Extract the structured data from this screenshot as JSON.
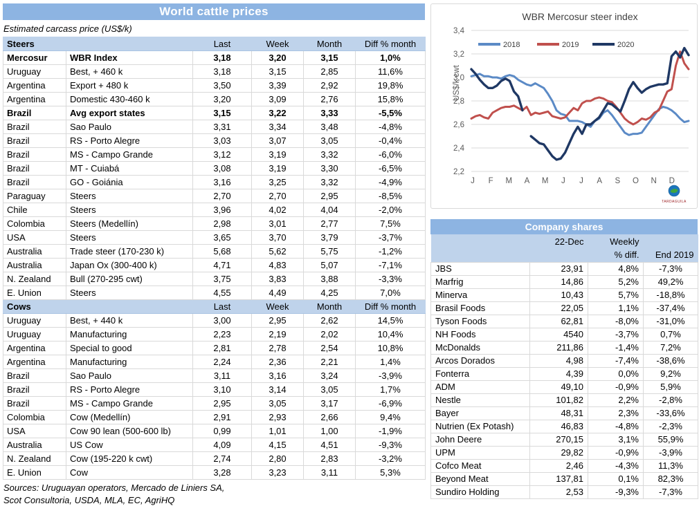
{
  "left_table": {
    "title": "World cattle prices",
    "subtitle": "Estimated carcass price (US$/k)",
    "columns": [
      "Last",
      "Week",
      "Month",
      "Diff % month"
    ],
    "sections": [
      {
        "label": "Steers",
        "rows": [
          [
            "Mercosur",
            "WBR Index",
            "3,18",
            "3,20",
            "3,15",
            "1,0%",
            true
          ],
          [
            "Uruguay",
            "Best, + 460 k",
            "3,18",
            "3,15",
            "2,85",
            "11,6%",
            false
          ],
          [
            "Argentina",
            "Export + 480 k",
            "3,50",
            "3,39",
            "2,92",
            "19,8%",
            false
          ],
          [
            "Argentina",
            "Domestic 430-460 k",
            "3,20",
            "3,09",
            "2,76",
            "15,8%",
            false
          ],
          [
            "Brazil",
            "Avg export states",
            "3,15",
            "3,22",
            "3,33",
            "-5,5%",
            true
          ],
          [
            "Brazil",
            "Sao Paulo",
            "3,31",
            "3,34",
            "3,48",
            "-4,8%",
            false
          ],
          [
            "Brazil",
            "RS - Porto Alegre",
            "3,03",
            "3,07",
            "3,05",
            "-0,4%",
            false
          ],
          [
            "Brazil",
            "MS - Campo Grande",
            "3,12",
            "3,19",
            "3,32",
            "-6,0%",
            false
          ],
          [
            "Brazil",
            "MT - Cuiabá",
            "3,08",
            "3,19",
            "3,30",
            "-6,5%",
            false
          ],
          [
            "Brazil",
            "GO - Goiánia",
            "3,16",
            "3,25",
            "3,32",
            "-4,9%",
            false
          ],
          [
            "Paraguay",
            "Steers",
            "2,70",
            "2,70",
            "2,95",
            "-8,5%",
            false
          ],
          [
            "Chile",
            "Steers",
            "3,96",
            "4,02",
            "4,04",
            "-2,0%",
            false
          ],
          [
            "Colombia",
            "Steers (Medellín)",
            "2,98",
            "3,01",
            "2,77",
            "7,5%",
            false
          ],
          [
            "USA",
            "Steers",
            "3,65",
            "3,70",
            "3,79",
            "-3,7%",
            false
          ],
          [
            "Australia",
            "Trade steer (170-230 k)",
            "5,68",
            "5,62",
            "5,75",
            "-1,2%",
            false
          ],
          [
            "Australia",
            "Japan Ox (300-400 k)",
            "4,71",
            "4,83",
            "5,07",
            "-7,1%",
            false
          ],
          [
            "N. Zealand",
            "Bull (270-295 cwt)",
            "3,75",
            "3,83",
            "3,88",
            "-3,3%",
            false
          ],
          [
            "E. Union",
            "Steers",
            "4,55",
            "4,49",
            "4,25",
            "7,0%",
            false
          ]
        ]
      },
      {
        "label": "Cows",
        "rows": [
          [
            "Uruguay",
            "Best, + 440 k",
            "3,00",
            "2,95",
            "2,62",
            "14,5%",
            false
          ],
          [
            "Uruguay",
            "Manufacturing",
            "2,23",
            "2,19",
            "2,02",
            "10,4%",
            false
          ],
          [
            "Argentina",
            "Special to good",
            "2,81",
            "2,78",
            "2,54",
            "10,8%",
            false
          ],
          [
            "Argentina",
            "Manufacturing",
            "2,24",
            "2,36",
            "2,21",
            "1,4%",
            false
          ],
          [
            "Brazil",
            "Sao Paulo",
            "3,11",
            "3,16",
            "3,24",
            "-3,9%",
            false
          ],
          [
            "Brazil",
            "RS - Porto Alegre",
            "3,10",
            "3,14",
            "3,05",
            "1,7%",
            false
          ],
          [
            "Brazil",
            "MS - Campo Grande",
            "2,95",
            "3,05",
            "3,17",
            "-6,9%",
            false
          ],
          [
            "Colombia",
            "Cow (Medellín)",
            "2,91",
            "2,93",
            "2,66",
            "9,4%",
            false
          ],
          [
            "USA",
            "Cow 90 lean (500-600 lb)",
            "0,99",
            "1,01",
            "1,00",
            "-1,9%",
            false
          ],
          [
            "Australia",
            "US Cow",
            "4,09",
            "4,15",
            "4,51",
            "-9,3%",
            false
          ],
          [
            "N. Zealand",
            "Cow (195-220 k cwt)",
            "2,74",
            "2,80",
            "2,83",
            "-3,2%",
            false
          ],
          [
            "E. Union",
            "Cow",
            "3,28",
            "3,23",
            "3,11",
            "5,3%",
            false
          ]
        ]
      }
    ],
    "sources_line1": "Sources: Uruguayan operators, Mercado de Liniers SA,",
    "sources_line2": "Scot Consultoria, USDA, MLA, EC, AgriHQ"
  },
  "chart_data": {
    "type": "line",
    "title": "WBR Mercosur steer index",
    "ylabel": "US$/k cwt",
    "ylim": [
      2.2,
      3.4
    ],
    "ytick_labels": [
      "2,2",
      "2,4",
      "2,6",
      "2,8",
      "3,0",
      "3,2",
      "3,4"
    ],
    "x_months": [
      "J",
      "F",
      "M",
      "A",
      "M",
      "J",
      "J",
      "A",
      "S",
      "O",
      "N",
      "D"
    ],
    "grid": true,
    "legend_position": "top-inside",
    "series": [
      {
        "name": "2018",
        "color": "#5B8AC6",
        "values": [
          3.01,
          3.02,
          3.03,
          3.01,
          3.01,
          3.0,
          3.0,
          2.99,
          3.01,
          3.02,
          3.01,
          2.98,
          2.96,
          2.94,
          2.93,
          2.95,
          2.93,
          2.91,
          2.86,
          2.8,
          2.72,
          2.69,
          2.68,
          2.63,
          2.63,
          2.63,
          2.62,
          2.6,
          2.58,
          2.63,
          2.65,
          2.7,
          2.72,
          2.68,
          2.63,
          2.58,
          2.53,
          2.51,
          2.52,
          2.52,
          2.53,
          2.58,
          2.63,
          2.68,
          2.73,
          2.75,
          2.74,
          2.72,
          2.69,
          2.65,
          2.62,
          2.63
        ]
      },
      {
        "name": "2019",
        "color": "#C0504D",
        "values": [
          2.65,
          2.67,
          2.68,
          2.66,
          2.65,
          2.7,
          2.72,
          2.74,
          2.75,
          2.75,
          2.76,
          2.74,
          2.72,
          2.75,
          2.68,
          2.7,
          2.69,
          2.7,
          2.71,
          2.67,
          2.66,
          2.65,
          2.66,
          2.7,
          2.74,
          2.72,
          2.78,
          2.8,
          2.8,
          2.82,
          2.83,
          2.82,
          2.8,
          2.79,
          2.75,
          2.7,
          2.65,
          2.62,
          2.6,
          2.62,
          2.65,
          2.64,
          2.66,
          2.7,
          2.72,
          2.8,
          2.88,
          2.9,
          3.1,
          3.22,
          3.12,
          3.07
        ]
      },
      {
        "name": "2020",
        "color": "#1F3864",
        "values": [
          3.07,
          3.03,
          2.98,
          2.94,
          2.91,
          2.91,
          2.93,
          2.97,
          2.99,
          2.97,
          2.88,
          2.84,
          2.72,
          null,
          2.5,
          2.47,
          2.44,
          2.43,
          2.38,
          2.33,
          2.3,
          2.31,
          2.36,
          2.44,
          2.52,
          2.58,
          2.52,
          2.6,
          2.6,
          2.63,
          2.66,
          2.72,
          2.78,
          2.77,
          2.74,
          2.71,
          2.8,
          2.9,
          2.96,
          2.91,
          2.87,
          2.9,
          2.92,
          2.93,
          2.94,
          2.94,
          2.95,
          3.18,
          3.22,
          3.17,
          3.25,
          3.19
        ]
      }
    ]
  },
  "company_shares": {
    "title": "Company shares",
    "header": {
      "date": "22-Dec",
      "weekly_line1": "Weekly",
      "weekly_line2": "% diff.",
      "end": "End 2019"
    },
    "rows": [
      [
        "JBS",
        "23,91",
        "4,8%",
        "-7,3%"
      ],
      [
        "Marfrig",
        "14,86",
        "5,2%",
        "49,2%"
      ],
      [
        "Minerva",
        "10,43",
        "5,7%",
        "-18,8%"
      ],
      [
        "Brasil Foods",
        "22,05",
        "1,1%",
        "-37,4%"
      ],
      [
        "Tyson Foods",
        "62,81",
        "-8,0%",
        "-31,0%"
      ],
      [
        "NH Foods",
        "4540",
        "-3,7%",
        "0,7%"
      ],
      [
        "McDonalds",
        "211,86",
        "-1,4%",
        "7,2%"
      ],
      [
        "Arcos Dorados",
        "4,98",
        "-7,4%",
        "-38,6%"
      ],
      [
        "Fonterra",
        "4,39",
        "0,0%",
        "9,2%"
      ],
      [
        "ADM",
        "49,10",
        "-0,9%",
        "5,9%"
      ],
      [
        "Nestle",
        "101,82",
        "2,2%",
        "-2,8%"
      ],
      [
        "Bayer",
        "48,31",
        "2,3%",
        "-33,6%"
      ],
      [
        "Nutrien (Ex Potash)",
        "46,83",
        "-4,8%",
        "-2,3%"
      ],
      [
        "John Deere",
        "270,15",
        "3,1%",
        "55,9%"
      ],
      [
        "UPM",
        "29,82",
        "-0,9%",
        "-3,9%"
      ],
      [
        "Cofco Meat",
        "2,46",
        "-4,3%",
        "11,3%"
      ],
      [
        "Beyond Meat",
        "137,81",
        "0,1%",
        "82,3%"
      ],
      [
        "Sundiro Holding",
        "2,53",
        "-9,3%",
        "-7,3%"
      ]
    ]
  },
  "logo": {
    "caption": "TARDAGUILA"
  },
  "colors": {
    "header_band": "#8DB4E2",
    "section_band": "#BFD3EB",
    "grid_border": "#D9D9D9",
    "tick_text": "#595959",
    "chart_title_text": "#404040",
    "series_2018": "#5B8AC6",
    "series_2019": "#C0504D",
    "series_2020": "#1F3864"
  }
}
